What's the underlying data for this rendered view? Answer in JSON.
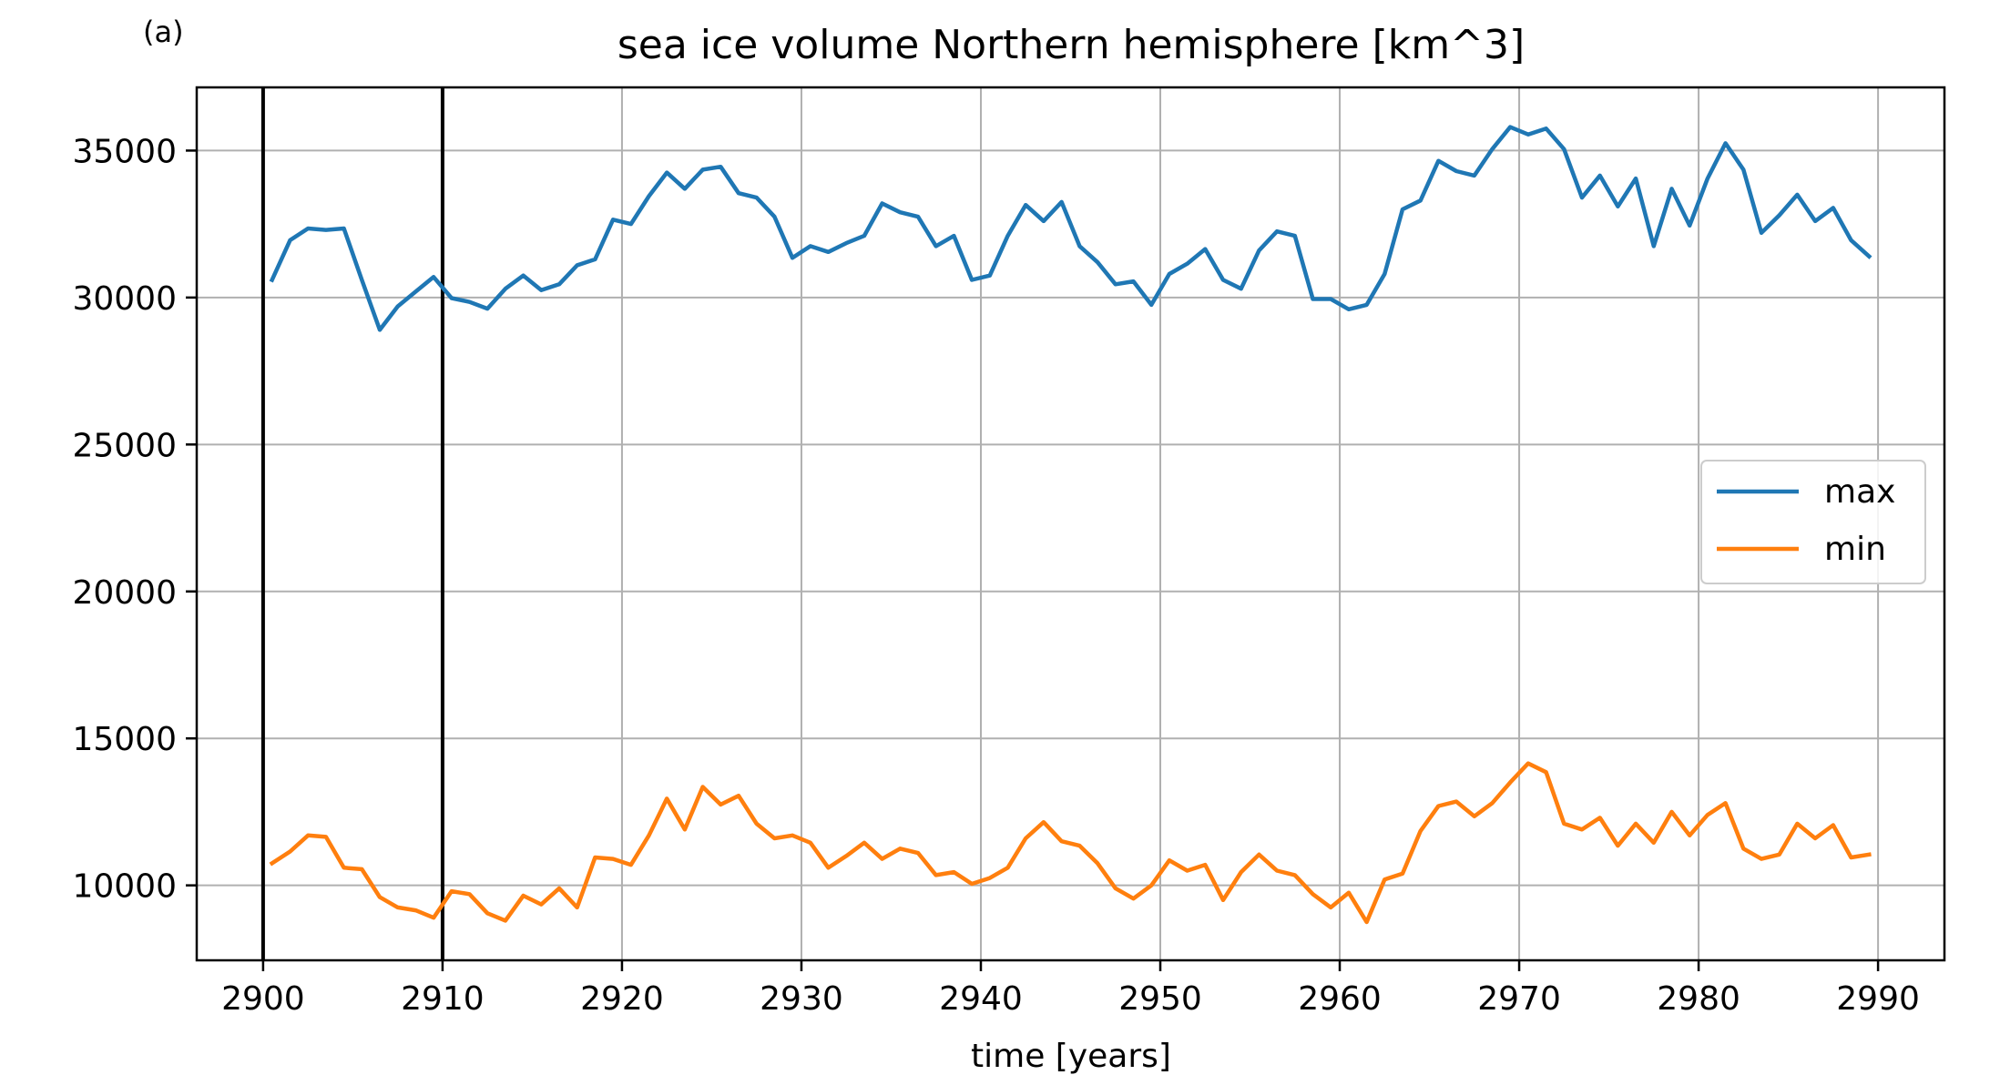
{
  "panel_label": "(a)",
  "chart_data": {
    "type": "line",
    "title": "sea ice volume Northern hemisphere [km^3]",
    "xlabel": "time [years]",
    "ylabel": "",
    "xlim": [
      2896.3,
      2993.7
    ],
    "ylim": [
      7450,
      37150
    ],
    "xticks": [
      2900,
      2910,
      2920,
      2930,
      2940,
      2950,
      2960,
      2970,
      2980,
      2990
    ],
    "yticks": [
      10000,
      15000,
      20000,
      25000,
      30000,
      35000
    ],
    "grid": true,
    "legend_position": "center-right",
    "vlines": [
      2900.0,
      2910.0
    ],
    "x": [
      2900.5,
      2901.5,
      2902.5,
      2903.5,
      2904.5,
      2905.5,
      2906.5,
      2907.5,
      2908.5,
      2909.5,
      2910.5,
      2911.5,
      2912.5,
      2913.5,
      2914.5,
      2915.5,
      2916.5,
      2917.5,
      2918.5,
      2919.5,
      2920.5,
      2921.5,
      2922.5,
      2923.5,
      2924.5,
      2925.5,
      2926.5,
      2927.5,
      2928.5,
      2929.5,
      2930.5,
      2931.5,
      2932.5,
      2933.5,
      2934.5,
      2935.5,
      2936.5,
      2937.5,
      2938.5,
      2939.5,
      2940.5,
      2941.5,
      2942.5,
      2943.5,
      2944.5,
      2945.5,
      2946.5,
      2947.5,
      2948.5,
      2949.5,
      2950.5,
      2951.5,
      2952.5,
      2953.5,
      2954.5,
      2955.5,
      2956.5,
      2957.5,
      2958.5,
      2959.5,
      2960.5,
      2961.5,
      2962.5,
      2963.5,
      2964.5,
      2965.5,
      2966.5,
      2967.5,
      2968.5,
      2969.5,
      2970.5,
      2971.5,
      2972.5,
      2973.5,
      2974.5,
      2975.5,
      2976.5,
      2977.5,
      2978.5,
      2979.5,
      2980.5,
      2981.5,
      2982.5,
      2983.5,
      2984.5,
      2985.5,
      2986.5,
      2987.5,
      2988.5,
      2989.5
    ],
    "series": [
      {
        "name": "max",
        "color": "#1f77b4",
        "values": [
          30600,
          31950,
          32350,
          32300,
          32350,
          30600,
          28900,
          29700,
          30200,
          30700,
          29980,
          29850,
          29620,
          30300,
          30750,
          30250,
          30450,
          31100,
          31300,
          32650,
          32500,
          33450,
          34250,
          33700,
          34350,
          34450,
          33550,
          33400,
          32750,
          31350,
          31750,
          31550,
          31850,
          32100,
          33200,
          32900,
          32750,
          31750,
          32100,
          30600,
          30750,
          32100,
          33150,
          32600,
          33250,
          31750,
          31200,
          30450,
          30550,
          29750,
          30800,
          31150,
          31650,
          30600,
          30300,
          31600,
          32250,
          32100,
          29950,
          29950,
          29600,
          29750,
          30800,
          33000,
          33300,
          34650,
          34300,
          34150,
          35050,
          35800,
          35550,
          35750,
          35050,
          33400,
          34150,
          33100,
          34050,
          31750,
          33700,
          32450,
          34050,
          35250,
          34350,
          32200,
          32800,
          33500,
          32600,
          33050,
          31950,
          31400
        ]
      },
      {
        "name": "min",
        "color": "#ff7f0e",
        "values": [
          10750,
          11150,
          11700,
          11650,
          10600,
          10550,
          9600,
          9250,
          9150,
          8900,
          9800,
          9700,
          9050,
          8800,
          9650,
          9350,
          9900,
          9250,
          10950,
          10900,
          10700,
          11700,
          12950,
          11900,
          13350,
          12750,
          13050,
          12100,
          11600,
          11700,
          11450,
          10600,
          11000,
          11450,
          10900,
          11250,
          11100,
          10350,
          10450,
          10050,
          10250,
          10600,
          11600,
          12150,
          11500,
          11350,
          10750,
          9900,
          9550,
          10000,
          10850,
          10500,
          10700,
          9500,
          10450,
          11050,
          10500,
          10350,
          9700,
          9250,
          9750,
          8750,
          10200,
          10400,
          11850,
          12700,
          12850,
          12350,
          12800,
          13500,
          14150,
          13850,
          12100,
          11900,
          12300,
          11350,
          12100,
          11450,
          12500,
          11700,
          12400,
          12800,
          11250,
          10900,
          11050,
          12100,
          11600,
          12050,
          10950,
          11050
        ]
      }
    ]
  }
}
